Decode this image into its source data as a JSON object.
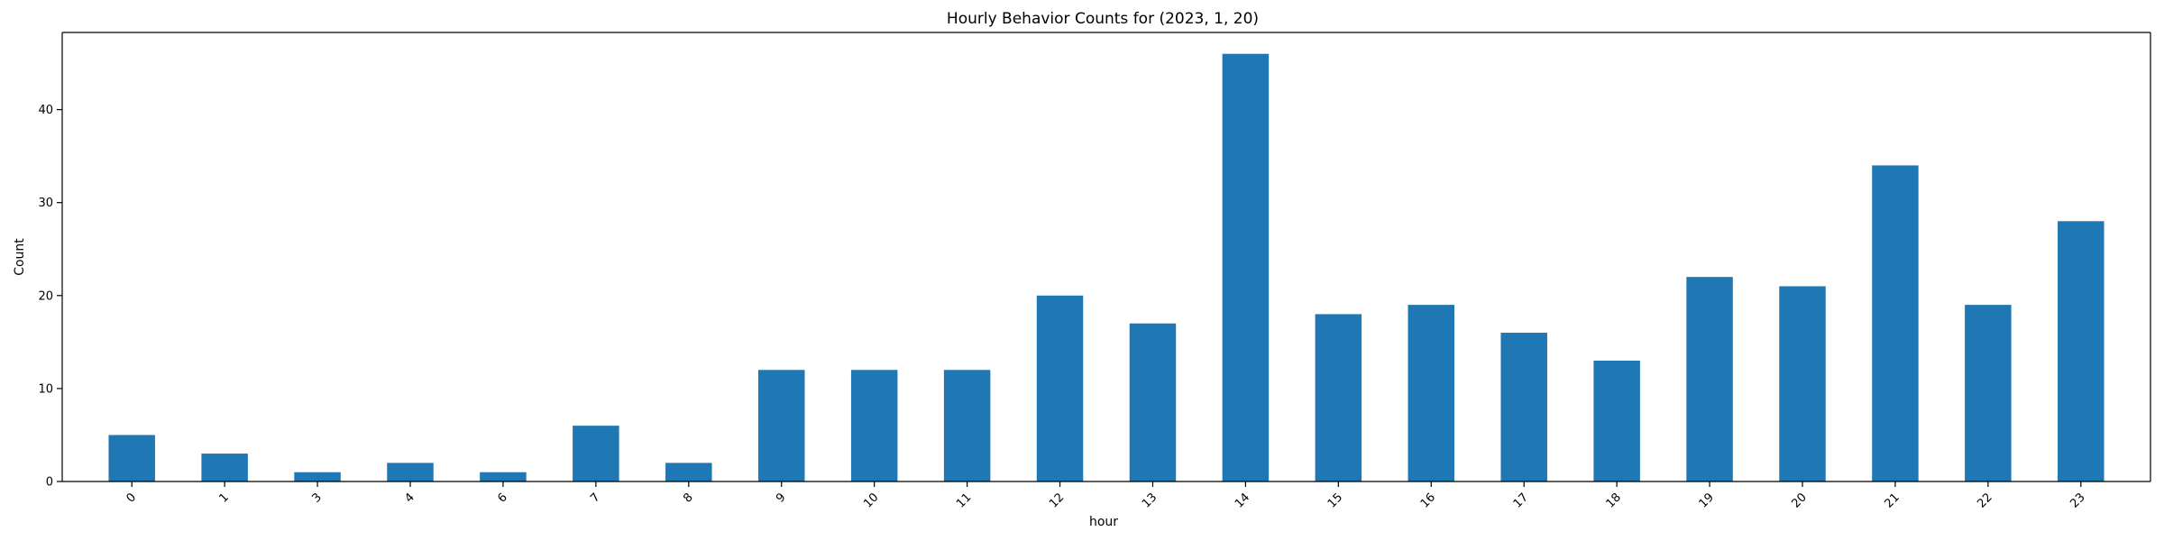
{
  "chart_data": {
    "type": "bar",
    "title": "Hourly Behavior Counts for (2023, 1, 20)",
    "xlabel": "hour",
    "ylabel": "Count",
    "categories": [
      "0",
      "1",
      "3",
      "4",
      "6",
      "7",
      "8",
      "9",
      "10",
      "11",
      "12",
      "13",
      "14",
      "15",
      "16",
      "17",
      "18",
      "19",
      "20",
      "21",
      "22",
      "23"
    ],
    "values": [
      5,
      3,
      1,
      2,
      1,
      6,
      2,
      12,
      12,
      12,
      20,
      17,
      46,
      18,
      19,
      16,
      13,
      22,
      21,
      34,
      19,
      28
    ],
    "ylim": [
      0,
      48.3
    ],
    "yticks": [
      0,
      10,
      20,
      30,
      40
    ],
    "grid": false,
    "legend": "none",
    "bar_color": "#1f77b4",
    "x_tick_rotation_deg": 45
  }
}
